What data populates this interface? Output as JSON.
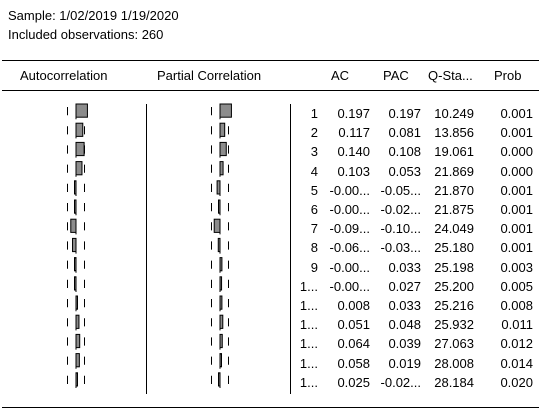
{
  "header": {
    "sample_line": "Sample: 1/02/2019 1/19/2020",
    "obs_line": "Included observations: 260"
  },
  "columns": {
    "autocorrelation": "Autocorrelation",
    "partial_correlation": "Partial Correlation",
    "ac": "AC",
    "pac": "PAC",
    "q_stat": "Q-Sta...",
    "prob": "Prob"
  },
  "bar_color": "#8c8c8c",
  "rows": [
    {
      "lag": "1",
      "ac_text": "0.197",
      "pac_text": "0.197",
      "q": "10.249",
      "prob": "0.001",
      "ac": 0.197,
      "pac": 0.197
    },
    {
      "lag": "2",
      "ac_text": "0.117",
      "pac_text": "0.081",
      "q": "13.856",
      "prob": "0.001",
      "ac": 0.117,
      "pac": 0.081
    },
    {
      "lag": "3",
      "ac_text": "0.140",
      "pac_text": "0.108",
      "q": "19.061",
      "prob": "0.000",
      "ac": 0.14,
      "pac": 0.108
    },
    {
      "lag": "4",
      "ac_text": "0.103",
      "pac_text": "0.053",
      "q": "21.869",
      "prob": "0.000",
      "ac": 0.103,
      "pac": 0.053
    },
    {
      "lag": "5",
      "ac_text": "-0.00...",
      "pac_text": "-0.05...",
      "q": "21.870",
      "prob": "0.001",
      "ac": -0.002,
      "pac": -0.05
    },
    {
      "lag": "6",
      "ac_text": "-0.00...",
      "pac_text": "-0.02...",
      "q": "21.875",
      "prob": "0.001",
      "ac": -0.004,
      "pac": -0.02
    },
    {
      "lag": "7",
      "ac_text": "-0.09...",
      "pac_text": "-0.10...",
      "q": "24.049",
      "prob": "0.001",
      "ac": -0.09,
      "pac": -0.1
    },
    {
      "lag": "8",
      "ac_text": "-0.06...",
      "pac_text": "-0.03...",
      "q": "25.180",
      "prob": "0.001",
      "ac": -0.06,
      "pac": -0.03
    },
    {
      "lag": "9",
      "ac_text": "-0.00...",
      "pac_text": "0.033",
      "q": "25.198",
      "prob": "0.003",
      "ac": -0.008,
      "pac": 0.033
    },
    {
      "lag": "1...",
      "ac_text": "-0.00...",
      "pac_text": "0.027",
      "q": "25.200",
      "prob": "0.005",
      "ac": -0.003,
      "pac": 0.027
    },
    {
      "lag": "1...",
      "ac_text": "0.008",
      "pac_text": "0.033",
      "q": "25.216",
      "prob": "0.008",
      "ac": 0.008,
      "pac": 0.033
    },
    {
      "lag": "1...",
      "ac_text": "0.051",
      "pac_text": "0.048",
      "q": "25.932",
      "prob": "0.011",
      "ac": 0.051,
      "pac": 0.048
    },
    {
      "lag": "1...",
      "ac_text": "0.064",
      "pac_text": "0.039",
      "q": "27.063",
      "prob": "0.012",
      "ac": 0.064,
      "pac": 0.039
    },
    {
      "lag": "1...",
      "ac_text": "0.058",
      "pac_text": "0.019",
      "q": "28.008",
      "prob": "0.014",
      "ac": 0.058,
      "pac": 0.019
    },
    {
      "lag": "1...",
      "ac_text": "0.025",
      "pac_text": "-0.02...",
      "q": "28.184",
      "prob": "0.020",
      "ac": 0.025,
      "pac": -0.02
    }
  ]
}
